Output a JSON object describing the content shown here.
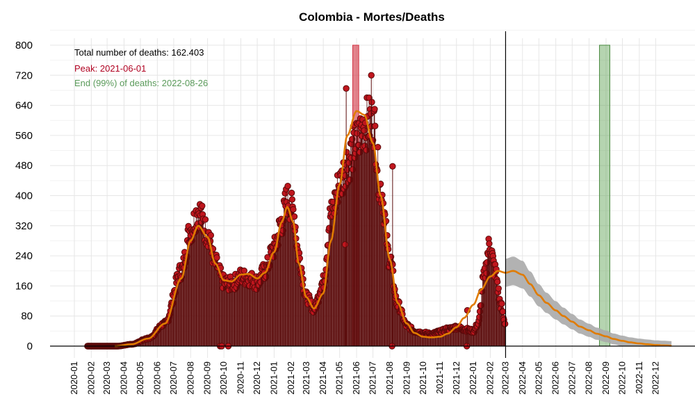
{
  "chart_data": {
    "type": "line",
    "title": "Colombia - Mortes/Deaths",
    "xlabel": "",
    "ylabel": "",
    "xlim": [
      "2020-01-01",
      "2022-12-31"
    ],
    "ylim": [
      0,
      800
    ],
    "y_ticks": [
      0,
      80,
      160,
      240,
      320,
      400,
      480,
      560,
      640,
      720,
      800
    ],
    "x_ticks": [
      "2020-01",
      "2020-02",
      "2020-03",
      "2020-04",
      "2020-05",
      "2020-06",
      "2020-07",
      "2020-08",
      "2020-09",
      "2020-10",
      "2020-11",
      "2020-12",
      "2021-01",
      "2021-02",
      "2021-03",
      "2021-04",
      "2021-05",
      "2021-06",
      "2021-07",
      "2021-08",
      "2021-09",
      "2021-10",
      "2021-11",
      "2021-12",
      "2022-01",
      "2022-02",
      "2022-03",
      "2022-04",
      "2022-05",
      "2022-06",
      "2022-07",
      "2022-08",
      "2022-09",
      "2022-10",
      "2022-11",
      "2022-12"
    ],
    "grid": true,
    "annotations": {
      "total": "Total number of deaths: 162.403",
      "peak": "Peak: 2021-06-01",
      "end": "End (99%) of deaths: 2022-08-26"
    },
    "colors": {
      "points": "#c0161e",
      "point_edge": "#5a0a0a",
      "smooth": "#e07b00",
      "peak_band": "#d03040",
      "end_band": "#5aa050",
      "ci_band": "#aaaaaa",
      "text_peak": "#b00020",
      "text_end": "#5a9a5a"
    },
    "current_date": "2022-03-01",
    "peak_band": [
      "2021-05-25",
      "2021-06-05"
    ],
    "end_band": [
      "2022-08-20",
      "2022-09-08"
    ],
    "observed_series_anchors": {
      "dates": [
        "2020-03-20",
        "2020-04-15",
        "2020-05-15",
        "2020-06-15",
        "2020-07-15",
        "2020-08-01",
        "2020-08-15",
        "2020-09-01",
        "2020-09-15",
        "2020-10-01",
        "2020-10-15",
        "2020-11-01",
        "2020-11-15",
        "2020-12-01",
        "2020-12-15",
        "2021-01-01",
        "2021-01-15",
        "2021-01-25",
        "2021-02-05",
        "2021-02-15",
        "2021-03-01",
        "2021-03-15",
        "2021-04-01",
        "2021-04-15",
        "2021-05-01",
        "2021-05-15",
        "2021-06-01",
        "2021-06-15",
        "2021-07-01",
        "2021-07-15",
        "2021-08-01",
        "2021-08-15",
        "2021-09-01",
        "2021-09-15",
        "2021-10-01",
        "2021-10-15",
        "2021-11-01",
        "2021-11-15",
        "2021-12-01",
        "2021-12-15",
        "2022-01-01",
        "2022-01-10",
        "2022-01-20",
        "2022-01-31",
        "2022-02-10",
        "2022-02-20",
        "2022-02-28"
      ],
      "values": [
        0,
        5,
        20,
        60,
        200,
        310,
        360,
        300,
        220,
        170,
        165,
        185,
        180,
        170,
        200,
        260,
        330,
        390,
        360,
        240,
        130,
        100,
        170,
        350,
        430,
        490,
        540,
        590,
        600,
        420,
        230,
        110,
        55,
        40,
        35,
        32,
        38,
        45,
        50,
        45,
        40,
        60,
        180,
        270,
        200,
        110,
        60
      ]
    },
    "outlier_points": [
      {
        "date": "2020-09-24",
        "value": 0
      },
      {
        "date": "2020-09-27",
        "value": 0
      },
      {
        "date": "2020-10-09",
        "value": 0
      },
      {
        "date": "2021-05-11",
        "value": 270
      },
      {
        "date": "2021-05-13",
        "value": 685
      },
      {
        "date": "2021-06-28",
        "value": 720
      },
      {
        "date": "2021-08-05",
        "value": 0
      },
      {
        "date": "2021-08-06",
        "value": 478
      },
      {
        "date": "2021-12-20",
        "value": 0
      },
      {
        "date": "2021-12-21",
        "value": 95
      }
    ],
    "smooth_anchors": {
      "dates": [
        "2020-03-15",
        "2020-04-15",
        "2020-05-15",
        "2020-06-15",
        "2020-07-15",
        "2020-08-01",
        "2020-08-15",
        "2020-09-01",
        "2020-09-15",
        "2020-10-01",
        "2020-10-15",
        "2020-11-01",
        "2020-11-15",
        "2020-12-01",
        "2020-12-15",
        "2021-01-01",
        "2021-01-15",
        "2021-01-25",
        "2021-02-05",
        "2021-02-15",
        "2021-03-01",
        "2021-03-15",
        "2021-04-01",
        "2021-04-15",
        "2021-05-01",
        "2021-05-15",
        "2021-06-01",
        "2021-06-15",
        "2021-07-01",
        "2021-07-15",
        "2021-08-01",
        "2021-08-15",
        "2021-09-01",
        "2021-09-15",
        "2021-10-01",
        "2021-10-15",
        "2021-11-01",
        "2021-11-15",
        "2021-12-01",
        "2021-12-15",
        "2022-01-01",
        "2022-01-15",
        "2022-02-01",
        "2022-02-15",
        "2022-03-01",
        "2022-03-15",
        "2022-04-01",
        "2022-04-15",
        "2022-05-01",
        "2022-05-15",
        "2022-06-01",
        "2022-06-15",
        "2022-07-01",
        "2022-07-15",
        "2022-08-01",
        "2022-08-15",
        "2022-09-01",
        "2022-09-15",
        "2022-10-01",
        "2022-10-15",
        "2022-11-01",
        "2022-11-15",
        "2022-12-01",
        "2022-12-15",
        "2022-12-31"
      ],
      "values": [
        0,
        5,
        20,
        60,
        180,
        280,
        320,
        290,
        220,
        175,
        172,
        190,
        192,
        180,
        195,
        250,
        330,
        370,
        330,
        220,
        130,
        100,
        140,
        280,
        430,
        560,
        625,
        615,
        540,
        400,
        230,
        115,
        60,
        35,
        25,
        23,
        25,
        33,
        50,
        75,
        110,
        150,
        185,
        200,
        195,
        200,
        190,
        165,
        135,
        115,
        95,
        80,
        65,
        52,
        42,
        33,
        26,
        19,
        14,
        10,
        7,
        5,
        3,
        2,
        1
      ]
    }
  }
}
